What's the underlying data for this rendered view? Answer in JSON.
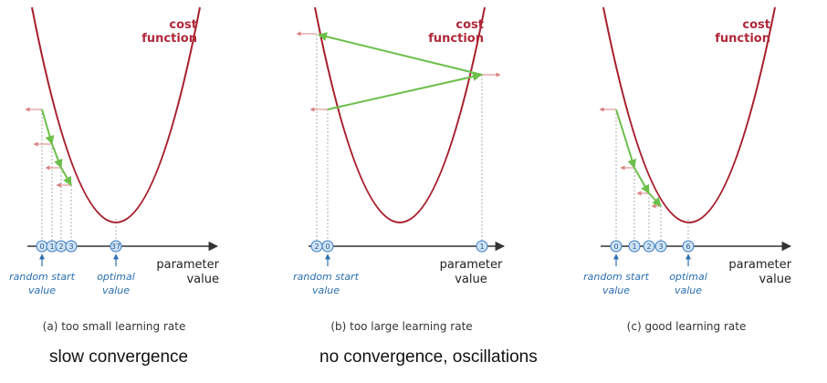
{
  "colors": {
    "curve": "#a8202e",
    "step_arrow": "#6cbf4a",
    "gradient_arrow": "#d98080",
    "axis": "#333333",
    "marker_fill": "#cfe3f7",
    "marker_stroke": "#3d7cc0",
    "annotation_blue": "#2a6fb0"
  },
  "panels": [
    {
      "id": "a",
      "cost_label_1": "cost",
      "cost_label_2": "function",
      "param_label_1": "parameter",
      "param_label_2": "value",
      "start_label_1": "random start",
      "start_label_2": "value",
      "optimal_label_1": "optimal",
      "optimal_label_2": "value",
      "caption": "(a) too small learning rate",
      "markers": [
        "0",
        "1",
        "2",
        "3",
        "37"
      ]
    },
    {
      "id": "b",
      "cost_label_1": "cost",
      "cost_label_2": "function",
      "param_label_1": "parameter",
      "param_label_2": "value",
      "start_label_1": "random start",
      "start_label_2": "value",
      "caption": "(b) too large learning rate",
      "markers": [
        "2",
        "0",
        "1"
      ]
    },
    {
      "id": "c",
      "cost_label_1": "cost",
      "cost_label_2": "function",
      "param_label_1": "parameter",
      "param_label_2": "value",
      "start_label_1": "random start",
      "start_label_2": "value",
      "optimal_label_1": "optimal",
      "optimal_label_2": "value",
      "caption": "(c) good learning rate",
      "markers": [
        "0",
        "1",
        "2",
        "3",
        "6"
      ]
    }
  ],
  "summary": {
    "slow": "slow convergence",
    "none": "no convergence, oscillations"
  }
}
